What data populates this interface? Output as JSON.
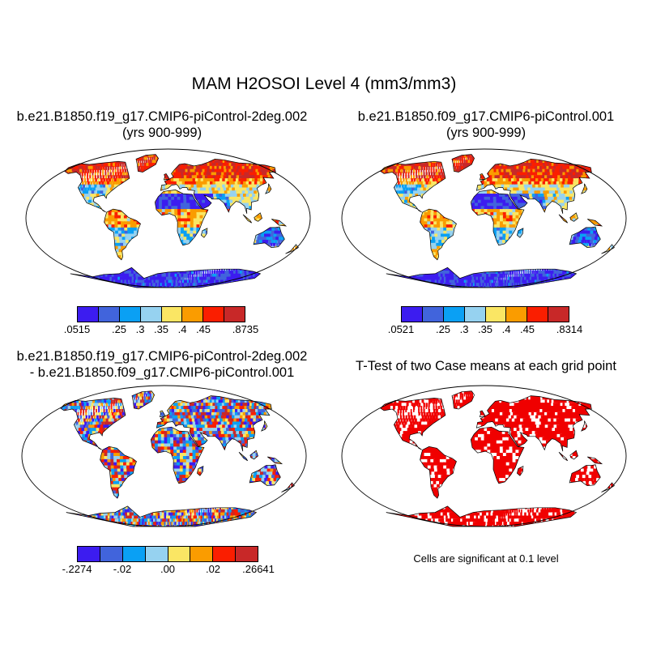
{
  "title": "MAM H2OSOI Level 4 (mm3/mm3)",
  "panels": {
    "p1": {
      "title_line1": "b.e21.B1850.f19_g17.CMIP6-piControl-2deg.002",
      "title_line2": "(yrs 900-999)"
    },
    "p2": {
      "title_line1": "b.e21.B1850.f09_g17.CMIP6-piControl.001",
      "title_line2": "(yrs 900-999)"
    },
    "p3": {
      "title_line1": "b.e21.B1850.f19_g17.CMIP6-piControl-2deg.002",
      "title_line2": "- b.e21.B1850.f09_g17.CMIP6-piControl.001"
    },
    "p4": {
      "title_line1": "T-Test of two Case means at each grid point",
      "note": "Cells are significant at 0.1 level"
    }
  },
  "colorbars": {
    "cb1": {
      "colors": [
        "#3c1cf0",
        "#4164dc",
        "#0aa0f4",
        "#96d2f0",
        "#fae664",
        "#fa9c00",
        "#fa1e00",
        "#c82828"
      ],
      "labels": [
        ".0515",
        ".25",
        ".3",
        ".35",
        ".4",
        ".45",
        ".8735"
      ]
    },
    "cb2": {
      "colors": [
        "#3c1cf0",
        "#4164dc",
        "#0aa0f4",
        "#96d2f0",
        "#fae664",
        "#fa9c00",
        "#fa1e00",
        "#c82828"
      ],
      "labels": [
        ".0521",
        ".25",
        ".3",
        ".35",
        ".4",
        ".45",
        ".8314"
      ]
    },
    "cb3": {
      "colors": [
        "#3c1cf0",
        "#4164dc",
        "#0aa0f4",
        "#96d2f0",
        "#fae664",
        "#fa9c00",
        "#fa1e00",
        "#c82828"
      ],
      "labels": [
        "-.2274",
        "-.02",
        ".00",
        ".02",
        ".26641"
      ]
    }
  },
  "significance_color": "#f00000"
}
